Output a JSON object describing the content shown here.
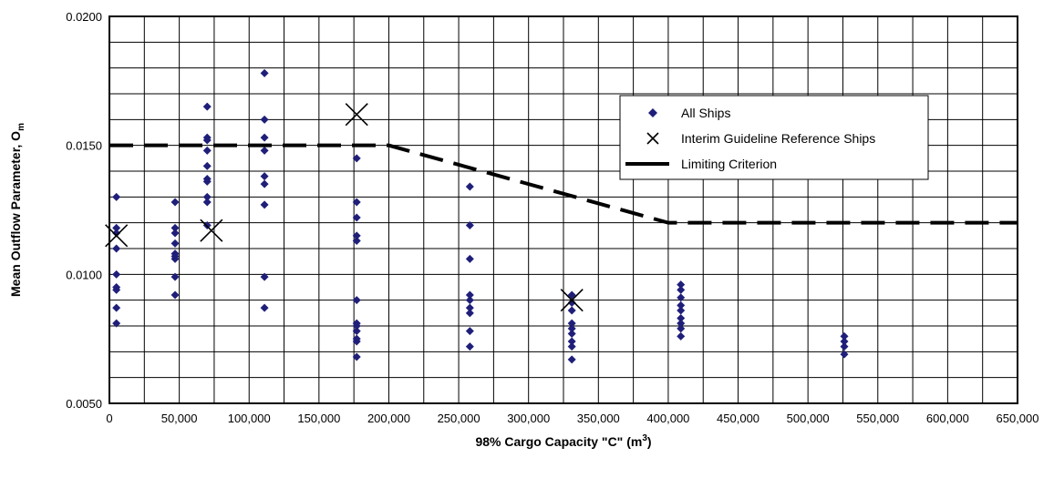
{
  "chart_data": {
    "type": "scatter",
    "xlabel": "98% Cargo Capacity \"C\" (m",
    "xlabel_sup": "3",
    "xlabel_end": ")",
    "ylabel": "Mean Outflow Parameter, O",
    "ylabel_sub": "m",
    "xlim": [
      0,
      650000
    ],
    "ylim": [
      0.005,
      0.02
    ],
    "x_ticks": [
      "0",
      "50,000",
      "100,000",
      "150,000",
      "200,000",
      "250,000",
      "300,000",
      "350,000",
      "400,000",
      "450,000",
      "500,000",
      "550,000",
      "600,000",
      "650,000"
    ],
    "y_ticks": [
      "0.0050",
      "0.0100",
      "0.0150",
      "0.0200"
    ],
    "grid": true,
    "legend_position": "top-right",
    "colors": {
      "all_ships": "#1f1f7a",
      "reference": "#000000",
      "limit": "#000000",
      "grid": "#000000"
    },
    "series": [
      {
        "name": "All Ships",
        "marker": "diamond",
        "points": [
          [
            5000,
            0.013
          ],
          [
            5000,
            0.0118
          ],
          [
            5000,
            0.0116
          ],
          [
            5000,
            0.011
          ],
          [
            5000,
            0.01
          ],
          [
            5000,
            0.0095
          ],
          [
            5000,
            0.0094
          ],
          [
            5000,
            0.0087
          ],
          [
            5000,
            0.0081
          ],
          [
            47000,
            0.0128
          ],
          [
            47000,
            0.0118
          ],
          [
            47000,
            0.0116
          ],
          [
            47000,
            0.0112
          ],
          [
            47000,
            0.0108
          ],
          [
            47000,
            0.0107
          ],
          [
            47000,
            0.0106
          ],
          [
            47000,
            0.0099
          ],
          [
            47000,
            0.0092
          ],
          [
            70000,
            0.0165
          ],
          [
            70000,
            0.0153
          ],
          [
            70000,
            0.0152
          ],
          [
            70000,
            0.0148
          ],
          [
            70000,
            0.0142
          ],
          [
            70000,
            0.0137
          ],
          [
            70000,
            0.0136
          ],
          [
            70000,
            0.013
          ],
          [
            70000,
            0.0128
          ],
          [
            70000,
            0.0119
          ],
          [
            111000,
            0.0178
          ],
          [
            111000,
            0.016
          ],
          [
            111000,
            0.0153
          ],
          [
            111000,
            0.0148
          ],
          [
            111000,
            0.0138
          ],
          [
            111000,
            0.0135
          ],
          [
            111000,
            0.0127
          ],
          [
            111000,
            0.0099
          ],
          [
            111000,
            0.0087
          ],
          [
            177000,
            0.0145
          ],
          [
            177000,
            0.0128
          ],
          [
            177000,
            0.0122
          ],
          [
            177000,
            0.0115
          ],
          [
            177000,
            0.0113
          ],
          [
            177000,
            0.009
          ],
          [
            177000,
            0.0081
          ],
          [
            177000,
            0.008
          ],
          [
            177000,
            0.0078
          ],
          [
            177000,
            0.0075
          ],
          [
            177000,
            0.0074
          ],
          [
            177000,
            0.0068
          ],
          [
            258000,
            0.0134
          ],
          [
            258000,
            0.0119
          ],
          [
            258000,
            0.0106
          ],
          [
            258000,
            0.0092
          ],
          [
            258000,
            0.009
          ],
          [
            258000,
            0.0087
          ],
          [
            258000,
            0.0085
          ],
          [
            258000,
            0.0078
          ],
          [
            258000,
            0.0072
          ],
          [
            331000,
            0.0092
          ],
          [
            331000,
            0.0089
          ],
          [
            331000,
            0.0086
          ],
          [
            331000,
            0.0081
          ],
          [
            331000,
            0.0079
          ],
          [
            331000,
            0.0077
          ],
          [
            331000,
            0.0074
          ],
          [
            331000,
            0.0072
          ],
          [
            331000,
            0.0067
          ],
          [
            409000,
            0.0096
          ],
          [
            409000,
            0.0094
          ],
          [
            409000,
            0.0091
          ],
          [
            409000,
            0.0088
          ],
          [
            409000,
            0.0086
          ],
          [
            409000,
            0.0083
          ],
          [
            409000,
            0.0081
          ],
          [
            409000,
            0.0079
          ],
          [
            409000,
            0.0076
          ],
          [
            526000,
            0.0076
          ],
          [
            526000,
            0.0074
          ],
          [
            526000,
            0.0072
          ],
          [
            526000,
            0.0069
          ]
        ]
      },
      {
        "name": "Interim Guideline Reference Ships",
        "marker": "x",
        "points": [
          [
            5000,
            0.0115
          ],
          [
            73000,
            0.0117
          ],
          [
            177000,
            0.0162
          ],
          [
            331000,
            0.009
          ]
        ]
      },
      {
        "name": "Limiting Criterion",
        "marker": "dashed-line",
        "points": [
          [
            0,
            0.015
          ],
          [
            200000,
            0.015
          ],
          [
            400000,
            0.012
          ],
          [
            650000,
            0.012
          ]
        ]
      }
    ]
  }
}
